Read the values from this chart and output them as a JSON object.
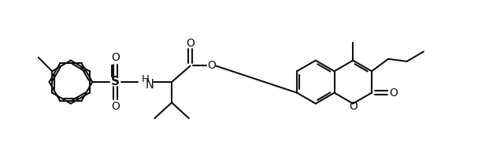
{
  "bg": "#ffffff",
  "lc": "#111111",
  "lw": 1.5,
  "dlw": 1.5,
  "doff": 0.045,
  "r": 0.44,
  "figw": 6.4,
  "figh": 2.08,
  "dpi": 100,
  "xlim": [
    0.0,
    10.0
  ],
  "ylim": [
    0.2,
    3.5
  ]
}
